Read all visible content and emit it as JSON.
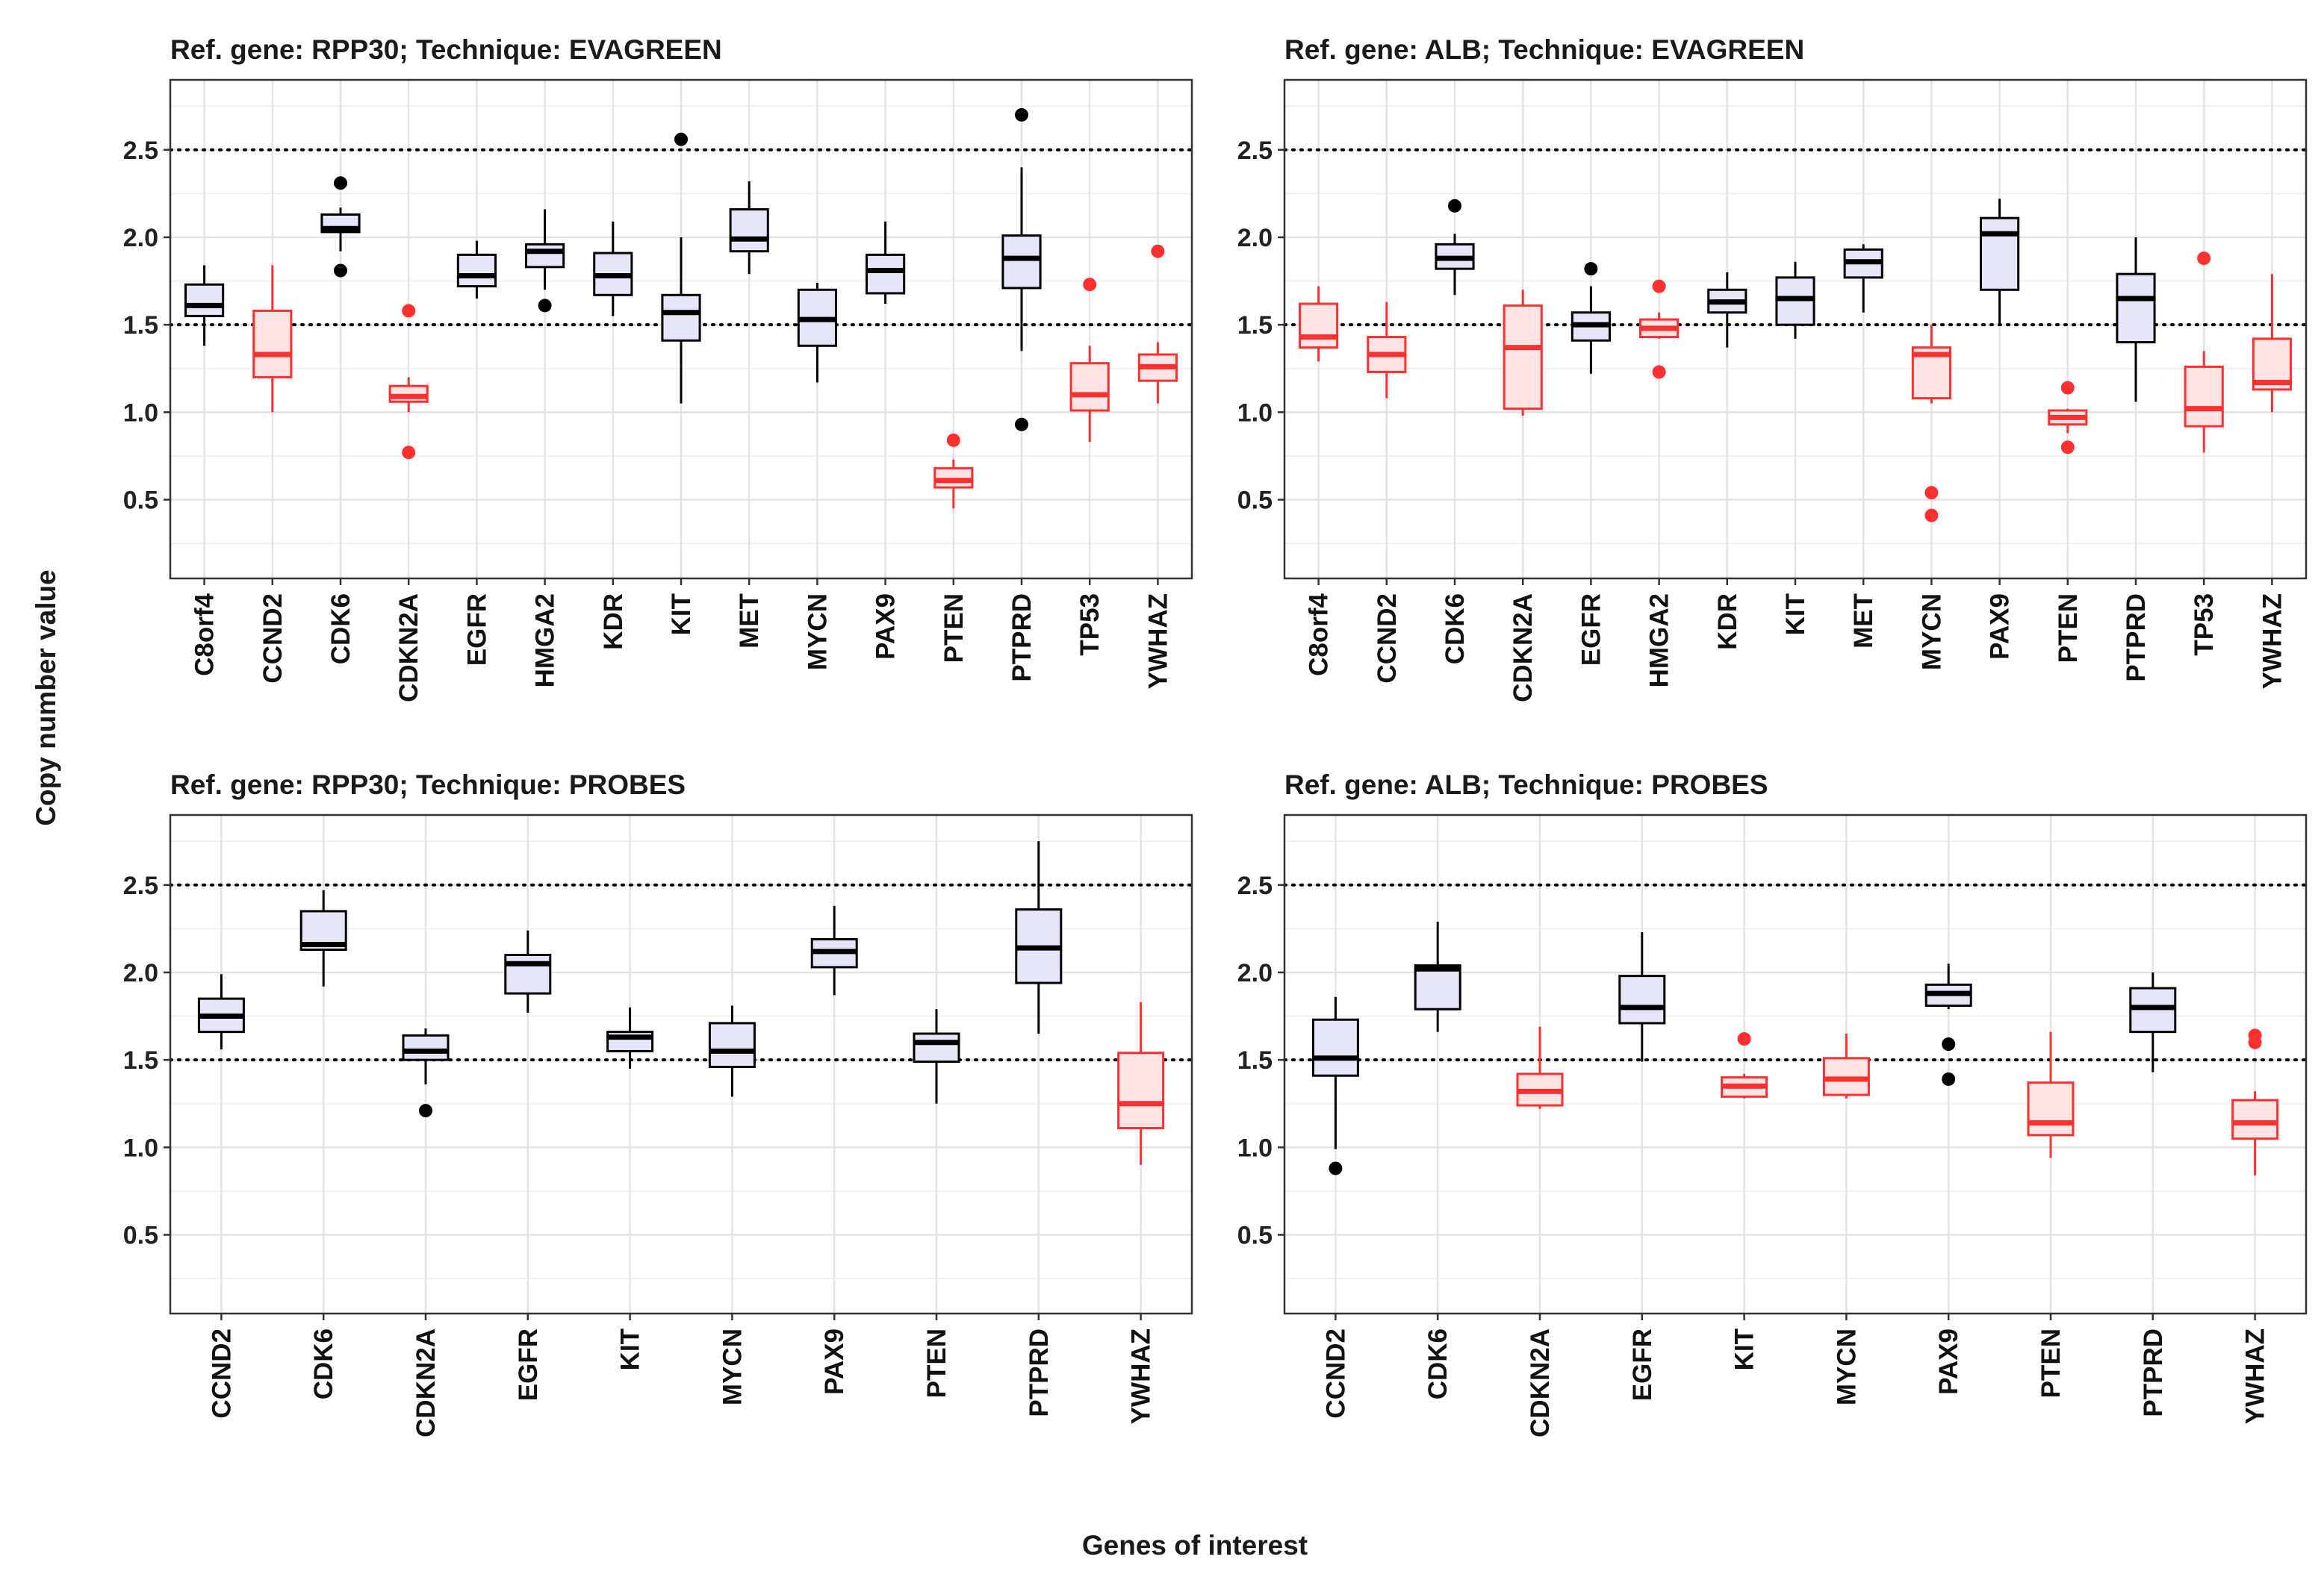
{
  "figure": {
    "x_axis_title": "Genes of interest",
    "y_axis_title": "Copy number value"
  },
  "chart_data": [
    {
      "type": "box",
      "title": "Ref. gene: RPP30; Technique: EVAGREEN",
      "ylim": [
        0.05,
        2.9
      ],
      "yticks": [
        0.5,
        1.0,
        1.5,
        2.0,
        2.5
      ],
      "ytick_labels": [
        "0.5",
        "1.0",
        "1.5",
        "2.0",
        "2.5"
      ],
      "reference_lines": [
        1.5,
        2.5
      ],
      "grid": true,
      "categories": [
        "C8orf4",
        "CCND2",
        "CDK6",
        "CDKN2A",
        "EGFR",
        "HMGA2",
        "KDR",
        "KIT",
        "MET",
        "MYCN",
        "PAX9",
        "PTEN",
        "PTPRD",
        "TP53",
        "YWHAZ"
      ],
      "boxes": [
        {
          "q1": 1.55,
          "median": 1.61,
          "q3": 1.73,
          "low": 1.38,
          "high": 1.84,
          "outliers": [],
          "status": "normal"
        },
        {
          "q1": 1.2,
          "median": 1.33,
          "q3": 1.58,
          "low": 1.0,
          "high": 1.84,
          "outliers": [],
          "status": "deleted"
        },
        {
          "q1": 2.03,
          "median": 2.05,
          "q3": 2.13,
          "low": 1.92,
          "high": 2.17,
          "outliers": [
            2.31,
            1.81
          ],
          "status": "normal"
        },
        {
          "q1": 1.06,
          "median": 1.09,
          "q3": 1.15,
          "low": 1.0,
          "high": 1.2,
          "outliers": [
            1.58,
            0.77
          ],
          "status": "deleted"
        },
        {
          "q1": 1.72,
          "median": 1.78,
          "q3": 1.9,
          "low": 1.65,
          "high": 1.98,
          "outliers": [],
          "status": "normal"
        },
        {
          "q1": 1.83,
          "median": 1.92,
          "q3": 1.96,
          "low": 1.7,
          "high": 2.16,
          "outliers": [
            1.61
          ],
          "status": "normal"
        },
        {
          "q1": 1.67,
          "median": 1.78,
          "q3": 1.91,
          "low": 1.55,
          "high": 2.09,
          "outliers": [],
          "status": "normal"
        },
        {
          "q1": 1.41,
          "median": 1.57,
          "q3": 1.67,
          "low": 1.05,
          "high": 2.0,
          "outliers": [
            2.56
          ],
          "status": "normal"
        },
        {
          "q1": 1.92,
          "median": 1.99,
          "q3": 2.16,
          "low": 1.79,
          "high": 2.32,
          "outliers": [],
          "status": "normal"
        },
        {
          "q1": 1.38,
          "median": 1.53,
          "q3": 1.7,
          "low": 1.17,
          "high": 1.74,
          "outliers": [],
          "status": "normal"
        },
        {
          "q1": 1.68,
          "median": 1.81,
          "q3": 1.9,
          "low": 1.62,
          "high": 2.09,
          "outliers": [],
          "status": "normal"
        },
        {
          "q1": 0.57,
          "median": 0.61,
          "q3": 0.68,
          "low": 0.45,
          "high": 0.73,
          "outliers": [
            0.84
          ],
          "status": "deleted"
        },
        {
          "q1": 1.71,
          "median": 1.88,
          "q3": 2.01,
          "low": 1.35,
          "high": 2.4,
          "outliers": [
            2.7,
            0.93
          ],
          "status": "normal"
        },
        {
          "q1": 1.01,
          "median": 1.1,
          "q3": 1.28,
          "low": 0.83,
          "high": 1.38,
          "outliers": [
            1.73
          ],
          "status": "deleted"
        },
        {
          "q1": 1.18,
          "median": 1.26,
          "q3": 1.33,
          "low": 1.05,
          "high": 1.4,
          "outliers": [
            1.92
          ],
          "status": "deleted"
        }
      ]
    },
    {
      "type": "box",
      "title": "Ref. gene: ALB; Technique: EVAGREEN",
      "ylim": [
        0.05,
        2.9
      ],
      "yticks": [
        0.5,
        1.0,
        1.5,
        2.0,
        2.5
      ],
      "ytick_labels": [
        "0.5",
        "1.0",
        "1.5",
        "2.0",
        "2.5"
      ],
      "reference_lines": [
        1.5,
        2.5
      ],
      "grid": true,
      "categories": [
        "C8orf4",
        "CCND2",
        "CDK6",
        "CDKN2A",
        "EGFR",
        "HMGA2",
        "KDR",
        "KIT",
        "MET",
        "MYCN",
        "PAX9",
        "PTEN",
        "PTPRD",
        "TP53",
        "YWHAZ"
      ],
      "boxes": [
        {
          "q1": 1.37,
          "median": 1.43,
          "q3": 1.62,
          "low": 1.29,
          "high": 1.72,
          "outliers": [],
          "status": "deleted"
        },
        {
          "q1": 1.23,
          "median": 1.33,
          "q3": 1.43,
          "low": 1.08,
          "high": 1.63,
          "outliers": [],
          "status": "deleted"
        },
        {
          "q1": 1.82,
          "median": 1.88,
          "q3": 1.96,
          "low": 1.67,
          "high": 2.02,
          "outliers": [
            2.18
          ],
          "status": "normal"
        },
        {
          "q1": 1.02,
          "median": 1.37,
          "q3": 1.61,
          "low": 0.98,
          "high": 1.7,
          "outliers": [],
          "status": "deleted"
        },
        {
          "q1": 1.41,
          "median": 1.5,
          "q3": 1.57,
          "low": 1.22,
          "high": 1.72,
          "outliers": [
            1.82
          ],
          "status": "normal"
        },
        {
          "q1": 1.43,
          "median": 1.48,
          "q3": 1.53,
          "low": 1.42,
          "high": 1.57,
          "outliers": [
            1.72,
            1.23
          ],
          "status": "deleted"
        },
        {
          "q1": 1.57,
          "median": 1.63,
          "q3": 1.7,
          "low": 1.37,
          "high": 1.8,
          "outliers": [],
          "status": "normal"
        },
        {
          "q1": 1.5,
          "median": 1.65,
          "q3": 1.77,
          "low": 1.42,
          "high": 1.86,
          "outliers": [],
          "status": "normal"
        },
        {
          "q1": 1.77,
          "median": 1.86,
          "q3": 1.93,
          "low": 1.57,
          "high": 1.96,
          "outliers": [],
          "status": "normal"
        },
        {
          "q1": 1.08,
          "median": 1.33,
          "q3": 1.37,
          "low": 1.05,
          "high": 1.5,
          "outliers": [
            0.54,
            0.41
          ],
          "status": "deleted"
        },
        {
          "q1": 1.7,
          "median": 2.02,
          "q3": 2.11,
          "low": 1.5,
          "high": 2.22,
          "outliers": [],
          "status": "normal"
        },
        {
          "q1": 0.93,
          "median": 0.97,
          "q3": 1.01,
          "low": 0.88,
          "high": 1.02,
          "outliers": [
            1.14,
            0.8
          ],
          "status": "deleted"
        },
        {
          "q1": 1.4,
          "median": 1.65,
          "q3": 1.79,
          "low": 1.06,
          "high": 2.0,
          "outliers": [],
          "status": "normal"
        },
        {
          "q1": 0.92,
          "median": 1.02,
          "q3": 1.26,
          "low": 0.77,
          "high": 1.35,
          "outliers": [
            1.88
          ],
          "status": "deleted"
        },
        {
          "q1": 1.13,
          "median": 1.17,
          "q3": 1.42,
          "low": 1.0,
          "high": 1.79,
          "outliers": [],
          "status": "deleted"
        }
      ]
    },
    {
      "type": "box",
      "title": "Ref. gene: RPP30; Technique: PROBES",
      "ylim": [
        0.05,
        2.9
      ],
      "yticks": [
        0.5,
        1.0,
        1.5,
        2.0,
        2.5
      ],
      "ytick_labels": [
        "0.5",
        "1.0",
        "1.5",
        "2.0",
        "2.5"
      ],
      "reference_lines": [
        1.5,
        2.5
      ],
      "grid": true,
      "categories": [
        "CCND2",
        "CDK6",
        "CDKN2A",
        "EGFR",
        "KIT",
        "MYCN",
        "PAX9",
        "PTEN",
        "PTPRD",
        "YWHAZ"
      ],
      "boxes": [
        {
          "q1": 1.66,
          "median": 1.75,
          "q3": 1.85,
          "low": 1.56,
          "high": 1.99,
          "outliers": [],
          "status": "normal"
        },
        {
          "q1": 2.13,
          "median": 2.16,
          "q3": 2.35,
          "low": 1.92,
          "high": 2.47,
          "outliers": [],
          "status": "normal"
        },
        {
          "q1": 1.5,
          "median": 1.55,
          "q3": 1.64,
          "low": 1.36,
          "high": 1.68,
          "outliers": [
            1.21
          ],
          "status": "normal"
        },
        {
          "q1": 1.88,
          "median": 2.05,
          "q3": 2.1,
          "low": 1.77,
          "high": 2.24,
          "outliers": [],
          "status": "normal"
        },
        {
          "q1": 1.55,
          "median": 1.63,
          "q3": 1.66,
          "low": 1.45,
          "high": 1.8,
          "outliers": [],
          "status": "normal"
        },
        {
          "q1": 1.46,
          "median": 1.55,
          "q3": 1.71,
          "low": 1.29,
          "high": 1.81,
          "outliers": [],
          "status": "normal"
        },
        {
          "q1": 2.03,
          "median": 2.12,
          "q3": 2.19,
          "low": 1.87,
          "high": 2.38,
          "outliers": [],
          "status": "normal"
        },
        {
          "q1": 1.49,
          "median": 1.6,
          "q3": 1.65,
          "low": 1.25,
          "high": 1.79,
          "outliers": [],
          "status": "normal"
        },
        {
          "q1": 1.94,
          "median": 2.14,
          "q3": 2.36,
          "low": 1.65,
          "high": 2.75,
          "outliers": [],
          "status": "normal"
        },
        {
          "q1": 1.11,
          "median": 1.25,
          "q3": 1.54,
          "low": 0.9,
          "high": 1.83,
          "outliers": [],
          "status": "deleted"
        }
      ]
    },
    {
      "type": "box",
      "title": "Ref. gene: ALB; Technique: PROBES",
      "ylim": [
        0.05,
        2.9
      ],
      "yticks": [
        0.5,
        1.0,
        1.5,
        2.0,
        2.5
      ],
      "ytick_labels": [
        "0.5",
        "1.0",
        "1.5",
        "2.0",
        "2.5"
      ],
      "reference_lines": [
        1.5,
        2.5
      ],
      "grid": true,
      "categories": [
        "CCND2",
        "CDK6",
        "CDKN2A",
        "EGFR",
        "KIT",
        "MYCN",
        "PAX9",
        "PTEN",
        "PTPRD",
        "YWHAZ"
      ],
      "boxes": [
        {
          "q1": 1.41,
          "median": 1.51,
          "q3": 1.73,
          "low": 0.99,
          "high": 1.86,
          "outliers": [
            0.88
          ],
          "status": "normal"
        },
        {
          "q1": 1.79,
          "median": 2.02,
          "q3": 2.04,
          "low": 1.66,
          "high": 2.29,
          "outliers": [],
          "status": "normal"
        },
        {
          "q1": 1.24,
          "median": 1.32,
          "q3": 1.42,
          "low": 1.22,
          "high": 1.69,
          "outliers": [],
          "status": "deleted"
        },
        {
          "q1": 1.71,
          "median": 1.8,
          "q3": 1.98,
          "low": 1.49,
          "high": 2.23,
          "outliers": [],
          "status": "normal"
        },
        {
          "q1": 1.29,
          "median": 1.35,
          "q3": 1.4,
          "low": 1.28,
          "high": 1.42,
          "outliers": [
            1.62
          ],
          "status": "deleted"
        },
        {
          "q1": 1.3,
          "median": 1.39,
          "q3": 1.51,
          "low": 1.28,
          "high": 1.65,
          "outliers": [],
          "status": "deleted"
        },
        {
          "q1": 1.81,
          "median": 1.88,
          "q3": 1.93,
          "low": 1.79,
          "high": 2.05,
          "outliers": [
            1.59,
            1.39
          ],
          "status": "normal"
        },
        {
          "q1": 1.07,
          "median": 1.14,
          "q3": 1.37,
          "low": 0.94,
          "high": 1.66,
          "outliers": [],
          "status": "deleted"
        },
        {
          "q1": 1.66,
          "median": 1.8,
          "q3": 1.91,
          "low": 1.43,
          "high": 2.0,
          "outliers": [],
          "status": "normal"
        },
        {
          "q1": 1.05,
          "median": 1.14,
          "q3": 1.27,
          "low": 0.84,
          "high": 1.32,
          "outliers": [
            1.64,
            1.6
          ],
          "status": "deleted"
        }
      ]
    }
  ],
  "colors": {
    "normal_stroke": "#000000",
    "normal_fill": "#e6e6fa",
    "deleted_stroke": "#ff3030",
    "deleted_fill": "#ffe4e4",
    "grid_major": "#e3e3e3",
    "grid_minor": "#f1f1f1",
    "panel_border": "#333333",
    "reference_line": "#000000"
  }
}
